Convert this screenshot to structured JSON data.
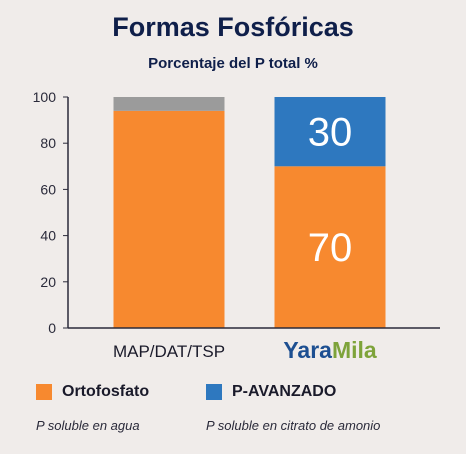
{
  "chart_data": {
    "type": "bar",
    "stacked": true,
    "title": "Formas Fosfóricas",
    "subtitle": "Porcentaje del P total %",
    "categories": [
      "MAP/DAT/TSP",
      "YaraMila"
    ],
    "category_logo": {
      "part1": "Yara",
      "part2": "Mila",
      "color1": "#1d4f91",
      "color2": "#7ea33a"
    },
    "ylim": [
      0,
      100
    ],
    "yticks": [
      0,
      20,
      40,
      60,
      80,
      100
    ],
    "series": [
      {
        "name": "Ortofosfato",
        "values": [
          94,
          70
        ],
        "color": "#f7892f",
        "show_labels": [
          false,
          true
        ]
      },
      {
        "name": "",
        "values": [
          6,
          0
        ],
        "color": "#9b9b9b",
        "show_labels": [
          false,
          false
        ]
      },
      {
        "name": "P-AVANZADO",
        "values": [
          0,
          30
        ],
        "color": "#2e78bf",
        "show_labels": [
          false,
          true
        ]
      }
    ],
    "legend": [
      {
        "label": "Ortofosfato",
        "sublabel": "P soluble en agua",
        "color": "#f7892f"
      },
      {
        "label": "P-AVANZADO",
        "sublabel": "P soluble en citrato de amonio",
        "color": "#2e78bf"
      }
    ],
    "grid": false
  }
}
